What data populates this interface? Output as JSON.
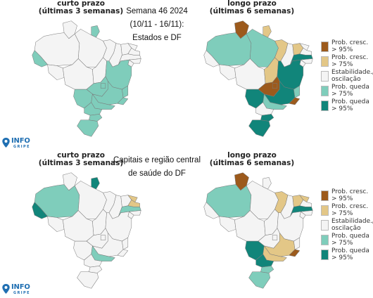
{
  "header": {
    "week_line": "Semana 46 2024",
    "dates_line": "(10/11 - 16/11):",
    "scope_line": "Estados e DF",
    "capitals_line1": "Capitais e região central",
    "capitals_line2": "de saúde do DF"
  },
  "panels": [
    {
      "id": "top-left",
      "title1": "curto prazo",
      "title2": "(últimas 3 semanas)"
    },
    {
      "id": "top-right",
      "title1": "longo prazo",
      "title2": "(últimas 6 semanas)"
    },
    {
      "id": "bottom-left",
      "title1": "curto prazo",
      "title2": "(últimas 3 semanas)"
    },
    {
      "id": "bottom-right",
      "title1": "longo prazo",
      "title2": "(últimas 6 semanas)"
    }
  ],
  "colors": {
    "incr95": "#9c5a1c",
    "incr75": "#e3c787",
    "stable": "#f4f4f4",
    "decr75": "#7fcdbb",
    "decr95": "#11857a",
    "border": "#7a7a7a"
  },
  "legend": {
    "items": [
      {
        "key": "incr95",
        "line1": "Prob. cresc.",
        "line2": "> 95%"
      },
      {
        "key": "incr75",
        "line1": "Prob. cresc.",
        "line2": "> 75%"
      },
      {
        "key": "stable",
        "line1": "Estabilidade./",
        "line2": "oscilação"
      },
      {
        "key": "decr75",
        "line1": "Prob. queda",
        "line2": "> 75%"
      },
      {
        "key": "decr95",
        "line1": "Prob. queda",
        "line2": "> 95%"
      }
    ]
  },
  "logo": {
    "word": "INFO",
    "sub": "GRIPE"
  },
  "maps": {
    "states_short": {
      "AC": "decr75",
      "AM": "stable",
      "RR": "stable",
      "AP": "decr75",
      "PA": "stable",
      "RO": "stable",
      "MT": "stable",
      "TO": "stable",
      "MA": "stable",
      "PI": "stable",
      "CE": "stable",
      "RN": "stable",
      "PB": "stable",
      "PE": "stable",
      "AL": "stable",
      "SE": "stable",
      "BA": "decr75",
      "GO": "decr75",
      "DF": "decr75",
      "MS": "decr75",
      "MG": "decr75",
      "ES": "decr75",
      "RJ": "decr75",
      "SP": "decr75",
      "PR": "decr75",
      "SC": "decr75",
      "RS": "decr75"
    },
    "states_long": {
      "AC": "stable",
      "AM": "decr75",
      "RR": "incr95",
      "AP": "incr75",
      "PA": "decr75",
      "RO": "stable",
      "MT": "stable",
      "TO": "incr75",
      "MA": "incr75",
      "PI": "stable",
      "CE": "incr75",
      "RN": "stable",
      "PB": "stable",
      "PE": "decr95",
      "AL": "stable",
      "SE": "stable",
      "BA": "decr95",
      "GO": "incr95",
      "DF": "incr95",
      "MS": "decr95",
      "MG": "decr95",
      "ES": "decr75",
      "RJ": "incr95",
      "SP": "decr75",
      "PR": "stable",
      "SC": "decr95",
      "RS": "decr95"
    },
    "capitals_short": {
      "AC": "decr95",
      "AM": "decr75",
      "RR": "stable",
      "AP": "decr95",
      "PA": "stable",
      "RO": "stable",
      "MT": "stable",
      "TO": "stable",
      "MA": "stable",
      "PI": "stable",
      "CE": "stable",
      "RN": "incr75",
      "PB": "incr75",
      "PE": "decr75",
      "AL": "stable",
      "SE": "stable",
      "BA": "stable",
      "GO": "stable",
      "DF": "stable",
      "MS": "stable",
      "MG": "stable",
      "ES": "stable",
      "RJ": "stable",
      "SP": "decr75",
      "PR": "stable",
      "SC": "stable",
      "RS": "stable"
    },
    "capitals_long": {
      "AC": "stable",
      "AM": "decr75",
      "RR": "incr95",
      "AP": "stable",
      "PA": "stable",
      "RO": "stable",
      "MT": "stable",
      "TO": "stable",
      "MA": "incr75",
      "PI": "stable",
      "CE": "incr75",
      "RN": "incr75",
      "PB": "stable",
      "PE": "decr95",
      "AL": "stable",
      "SE": "stable",
      "BA": "stable",
      "GO": "stable",
      "DF": "stable",
      "MS": "decr95",
      "MG": "incr75",
      "ES": "stable",
      "RJ": "incr95",
      "SP": "incr75",
      "PR": "decr95",
      "SC": "decr75",
      "RS": "decr75"
    }
  }
}
